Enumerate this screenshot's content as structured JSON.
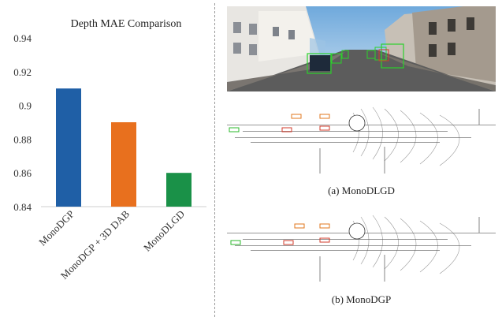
{
  "chart_data": {
    "type": "bar",
    "title": "Depth MAE Comparison",
    "xlabel": "",
    "ylabel": "",
    "categories": [
      "MonoDGP",
      "MonoDGP + 3D DAB",
      "MonoDLGD"
    ],
    "values": [
      0.91,
      0.89,
      0.86
    ],
    "colors": [
      "#1f5fa6",
      "#e8701e",
      "#1a9148"
    ],
    "ylim": [
      0.84,
      0.94
    ],
    "yticks": [
      "0.84",
      "0.86",
      "0.88",
      "0.9",
      "0.92",
      "0.94"
    ],
    "grid": false
  },
  "captions": {
    "a": "(a) MonoDLGD",
    "b": "(b) MonoDGP"
  }
}
